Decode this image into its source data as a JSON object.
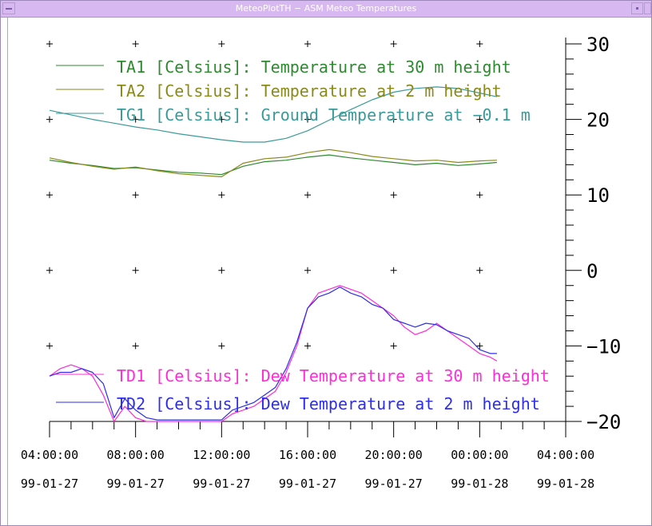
{
  "window": {
    "title": "MeteoPlotTH − ASM Meteo Temperatures",
    "menu_icon": "minus-icon",
    "titlebar_color": "#d8b8f0"
  },
  "chart_data": [
    {
      "type": "line",
      "title": "",
      "xlabel": "",
      "ylabel": "",
      "grid": "plus-markers",
      "legend_position": "top-left",
      "x_ticks": [
        {
          "time": "04:00:00",
          "date": "99-01-27"
        },
        {
          "time": "08:00:00",
          "date": "99-01-27"
        },
        {
          "time": "12:00:00",
          "date": "99-01-27"
        },
        {
          "time": "16:00:00",
          "date": "99-01-27"
        },
        {
          "time": "20:00:00",
          "date": "99-01-27"
        },
        {
          "time": "00:00:00",
          "date": "99-01-28"
        },
        {
          "time": "04:00:00",
          "date": "99-01-28"
        }
      ],
      "xlim": [
        "99-01-27 04:00:00",
        "99-01-28 04:00:00"
      ],
      "y_ticks": [
        "30",
        "20",
        "10",
        "0",
        "−10",
        "−20"
      ],
      "ylim": [
        -20,
        30
      ],
      "series": [
        {
          "name": "TA1 [Celsius]: Temperature at 30 m height",
          "color": "#2e8a2e",
          "x": [
            4.0,
            5.0,
            6.0,
            7.0,
            8.0,
            9.0,
            10.0,
            11.0,
            12.0,
            13.0,
            14.0,
            15.0,
            16.0,
            17.0,
            18.0,
            19.0,
            20.0,
            21.0,
            22.0,
            23.0,
            24.0,
            24.8
          ],
          "y": [
            14.6,
            14.2,
            13.9,
            13.5,
            13.6,
            13.3,
            13.0,
            12.9,
            12.7,
            13.8,
            14.4,
            14.6,
            15.0,
            15.3,
            14.9,
            14.6,
            14.3,
            14.0,
            14.2,
            13.9,
            14.1,
            14.3
          ]
        },
        {
          "name": "TA2 [Celsius]: Temperature at 2 m height",
          "color": "#8a8a1a",
          "x": [
            4.0,
            5.0,
            6.0,
            7.0,
            8.0,
            9.0,
            10.0,
            11.0,
            12.0,
            13.0,
            14.0,
            15.0,
            16.0,
            17.0,
            18.0,
            19.0,
            20.0,
            21.0,
            22.0,
            23.0,
            24.0,
            24.8
          ],
          "y": [
            14.9,
            14.3,
            13.8,
            13.4,
            13.7,
            13.2,
            12.8,
            12.6,
            12.4,
            14.2,
            14.8,
            15.0,
            15.6,
            16.0,
            15.6,
            15.1,
            14.8,
            14.5,
            14.6,
            14.3,
            14.5,
            14.6
          ]
        },
        {
          "name": "TG1 [Celsius]: Ground Temperature at −0.1 m",
          "color": "#3a9a9a",
          "x": [
            4.0,
            5.0,
            6.0,
            7.0,
            8.0,
            9.0,
            10.0,
            11.0,
            12.0,
            13.0,
            14.0,
            15.0,
            16.0,
            17.0,
            18.0,
            19.0,
            20.0,
            21.0,
            22.0,
            23.0,
            24.0,
            24.8
          ],
          "y": [
            21.2,
            20.6,
            20.0,
            19.5,
            19.0,
            18.6,
            18.1,
            17.7,
            17.3,
            17.0,
            17.0,
            17.5,
            18.5,
            19.9,
            21.3,
            22.6,
            23.6,
            24.1,
            24.3,
            24.1,
            23.5,
            23.0
          ]
        }
      ]
    },
    {
      "type": "line",
      "title": "",
      "xlabel": "",
      "ylabel": "",
      "legend_position": "bottom-left",
      "ylim": [
        -20,
        30
      ],
      "series": [
        {
          "name": "TD1 [Celsius]: Dew Temperature at 30 m height",
          "color": "#ff2cd8",
          "x": [
            4.0,
            4.5,
            5.0,
            5.5,
            6.0,
            6.5,
            7.0,
            7.5,
            8.0,
            8.5,
            9.0,
            12.0,
            12.5,
            13.0,
            13.5,
            14.0,
            14.5,
            15.0,
            15.5,
            16.0,
            16.5,
            17.0,
            17.5,
            18.0,
            18.5,
            19.0,
            19.5,
            20.0,
            20.5,
            21.0,
            21.5,
            22.0,
            22.5,
            23.0,
            23.5,
            24.0,
            24.5,
            24.8
          ],
          "y": [
            -14.0,
            -13.0,
            -12.5,
            -13.0,
            -14.0,
            -16.5,
            -20.0,
            -18.0,
            -19.5,
            -20.0,
            -20.0,
            -20.0,
            -19.0,
            -18.5,
            -18.0,
            -17.0,
            -16.0,
            -13.5,
            -10.0,
            -5.0,
            -3.0,
            -2.5,
            -2.0,
            -2.5,
            -3.0,
            -4.0,
            -5.0,
            -6.0,
            -7.5,
            -8.5,
            -8.0,
            -7.0,
            -8.0,
            -9.0,
            -10.0,
            -11.0,
            -11.5,
            -12.0
          ]
        },
        {
          "name": "TD2 [Celsius]: Dew Temperature at 2 m height",
          "color": "#2e2ee8",
          "x": [
            4.0,
            4.5,
            5.0,
            5.5,
            6.0,
            6.5,
            7.0,
            7.5,
            8.0,
            8.5,
            9.0,
            12.0,
            12.5,
            13.0,
            13.5,
            14.0,
            14.5,
            15.0,
            15.5,
            16.0,
            16.5,
            17.0,
            17.5,
            18.0,
            18.5,
            19.0,
            19.5,
            20.0,
            20.5,
            21.0,
            21.5,
            22.0,
            22.5,
            23.0,
            23.5,
            24.0,
            24.5,
            24.8
          ],
          "y": [
            -14.0,
            -13.5,
            -13.5,
            -13.0,
            -13.5,
            -15.0,
            -19.5,
            -17.0,
            -18.5,
            -19.5,
            -19.8,
            -19.8,
            -18.5,
            -18.0,
            -17.5,
            -16.5,
            -15.5,
            -13.0,
            -9.5,
            -5.0,
            -3.5,
            -3.0,
            -2.2,
            -3.0,
            -3.5,
            -4.5,
            -5.0,
            -6.5,
            -7.0,
            -7.5,
            -7.0,
            -7.2,
            -8.0,
            -8.5,
            -9.0,
            -10.5,
            -11.0,
            -11.0
          ]
        }
      ]
    }
  ]
}
